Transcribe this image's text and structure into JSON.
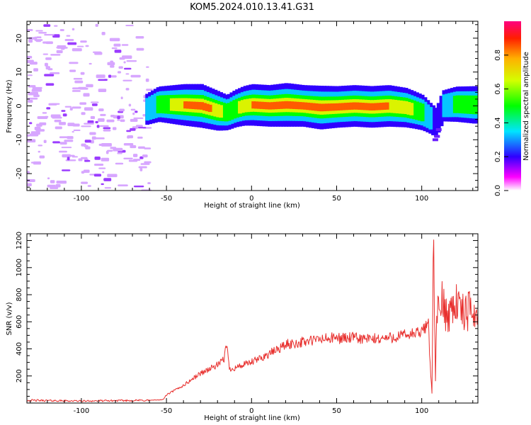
{
  "title": "KOM5.2024.010.13.41.G31",
  "chart_data": [
    {
      "type": "heatmap",
      "xlabel": "Height of straight line (km)",
      "ylabel": "Frequency (Hz)",
      "xlim": [
        -132,
        133
      ],
      "ylim": [
        -25,
        25
      ],
      "xticks": [
        -100,
        -50,
        0,
        50,
        100
      ],
      "yticks": [
        -20,
        -10,
        0,
        10,
        20
      ],
      "grid": false,
      "colorbar": {
        "label": "Normalized spectral amplitude",
        "range": [
          0,
          1
        ],
        "ticks": [
          "0.0",
          "0.2",
          "0.4",
          "0.6",
          "0.8"
        ]
      },
      "ridge": {
        "x": [
          -62,
          -55,
          -40,
          -30,
          -20,
          -15,
          -10,
          -5,
          0,
          10,
          20,
          30,
          40,
          50,
          60,
          70,
          80,
          90,
          95,
          100,
          104,
          108,
          112,
          120,
          130
        ],
        "freq_hz": [
          -1,
          0.5,
          0.3,
          0,
          -1.5,
          -2,
          -0.8,
          0,
          0.3,
          0,
          0.3,
          0,
          -0.5,
          -0.3,
          0,
          -0.3,
          0,
          -0.5,
          -1.2,
          -2,
          -3.5,
          -5,
          0,
          0.5,
          0.3
        ],
        "peak_amplitude": [
          0.3,
          0.5,
          0.8,
          0.9,
          0.7,
          0.5,
          0.6,
          0.7,
          0.8,
          0.8,
          0.9,
          0.8,
          0.9,
          0.8,
          0.8,
          0.8,
          0.8,
          0.7,
          0.6,
          0.5,
          0.3,
          0.2,
          0.3,
          0.5,
          0.6
        ]
      },
      "noise_region": {
        "x_range": [
          -132,
          -60
        ],
        "freq_range": [
          -25,
          25
        ],
        "amplitude": 0.1
      }
    },
    {
      "type": "line",
      "xlabel": "Height of straight line (km)",
      "ylabel": "SNR (v/v)",
      "xlim": [
        -132,
        133
      ],
      "ylim": [
        0,
        1250
      ],
      "xticks": [
        -100,
        -50,
        0,
        50,
        100
      ],
      "yticks": [
        200,
        400,
        600,
        800,
        1000,
        1200
      ],
      "grid": false,
      "series": [
        {
          "color": "#e8302e",
          "x": [
            -132,
            -100,
            -60,
            -52,
            -50,
            -40,
            -30,
            -20,
            -16,
            -15,
            -13,
            -10,
            0,
            10,
            20,
            30,
            40,
            50,
            60,
            70,
            80,
            90,
            100,
            104,
            106,
            107,
            108,
            109,
            110,
            112,
            115,
            120,
            125,
            130,
            133
          ],
          "values": [
            20,
            15,
            20,
            25,
            60,
            130,
            220,
            280,
            320,
            470,
            250,
            260,
            300,
            360,
            430,
            450,
            470,
            480,
            480,
            470,
            480,
            500,
            520,
            600,
            60,
            1230,
            150,
            700,
            650,
            750,
            650,
            750,
            650,
            700,
            620
          ]
        }
      ]
    }
  ]
}
